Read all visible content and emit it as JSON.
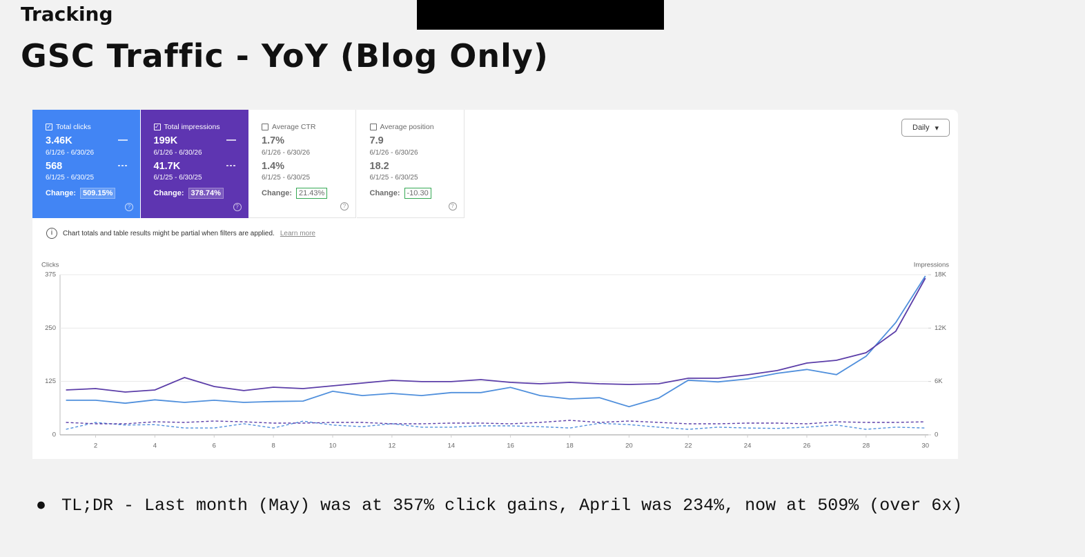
{
  "header": {
    "label": "Tracking",
    "title": "GSC Traffic - YoY (Blog Only)"
  },
  "metrics": [
    {
      "name": "Total clicks",
      "checked": true,
      "color": "#4285f4",
      "current": "3.46K",
      "current_range": "6/1/26 - 6/30/26",
      "previous": "568",
      "previous_range": "6/1/25 - 6/30/25",
      "change_label": "Change:",
      "change": "509.15%"
    },
    {
      "name": "Total impressions",
      "checked": true,
      "color": "#5e35b1",
      "current": "199K",
      "current_range": "6/1/26 - 6/30/26",
      "previous": "41.7K",
      "previous_range": "6/1/25 - 6/30/25",
      "change_label": "Change:",
      "change": "378.74%"
    },
    {
      "name": "Average CTR",
      "checked": false,
      "color": "#ffffff",
      "current": "1.7%",
      "current_range": "6/1/26 - 6/30/26",
      "previous": "1.4%",
      "previous_range": "6/1/25 - 6/30/25",
      "change_label": "Change:",
      "change": "21.43%"
    },
    {
      "name": "Average position",
      "checked": false,
      "color": "#ffffff",
      "current": "7.9",
      "current_range": "6/1/26 - 6/30/26",
      "previous": "18.2",
      "previous_range": "6/1/25 - 6/30/25",
      "change_label": "Change:",
      "change": "-10.30"
    }
  ],
  "notice": {
    "text": "Chart totals and table results might be partial when filters are applied.",
    "link": "Learn more"
  },
  "filter": "Daily",
  "chart_data": {
    "type": "line",
    "y_label": "Clicks",
    "y2_label": "Impressions",
    "x": [
      1,
      2,
      3,
      4,
      5,
      6,
      7,
      8,
      9,
      10,
      11,
      12,
      13,
      14,
      15,
      16,
      17,
      18,
      19,
      20,
      21,
      22,
      23,
      24,
      25,
      26,
      27,
      28,
      29,
      30
    ],
    "xlim": [
      0.8,
      30.1
    ],
    "xticks": [
      2,
      4,
      6,
      8,
      10,
      12,
      14,
      16,
      18,
      20,
      22,
      24,
      26,
      28,
      30
    ],
    "ylim": [
      0,
      375
    ],
    "yticks": [
      0,
      125,
      250,
      375
    ],
    "y2lim": [
      0,
      18000
    ],
    "y2ticks": [
      0,
      {
        "value": 6000,
        "label": "6K"
      },
      {
        "value": 12000,
        "label": "12K"
      },
      {
        "value": 18000,
        "label": "18K"
      }
    ],
    "grid": true,
    "series": [
      {
        "color": "#4f8fdc",
        "dashed": false,
        "axis": "y",
        "values": [
          81,
          81,
          74,
          82,
          76,
          81,
          76,
          78,
          79,
          102,
          92,
          97,
          92,
          99,
          99,
          111,
          92,
          84,
          87,
          66,
          86,
          128,
          124,
          131,
          144,
          153,
          141,
          184,
          263,
          372
        ]
      },
      {
        "color": "#4f8fdc",
        "dashed": true,
        "axis": "y",
        "values": [
          13,
          29,
          23,
          24,
          16,
          16,
          26,
          16,
          32,
          23,
          19,
          26,
          18,
          18,
          21,
          21,
          19,
          16,
          27,
          24,
          18,
          13,
          18,
          16,
          15,
          18,
          23,
          13,
          18,
          16
        ]
      },
      {
        "color": "#5b3da8",
        "dashed": false,
        "axis": "y2",
        "values": [
          5040,
          5200,
          4810,
          5040,
          6440,
          5430,
          4970,
          5350,
          5200,
          5510,
          5820,
          6130,
          5980,
          5980,
          6210,
          5900,
          5740,
          5900,
          5740,
          5660,
          5740,
          6360,
          6360,
          6750,
          7220,
          8070,
          8380,
          9230,
          11640,
          17610
        ]
      },
      {
        "color": "#5b3da8",
        "dashed": true,
        "axis": "y2",
        "values": [
          1400,
          1240,
          1240,
          1470,
          1400,
          1550,
          1470,
          1320,
          1320,
          1400,
          1400,
          1240,
          1240,
          1320,
          1320,
          1240,
          1400,
          1630,
          1400,
          1550,
          1400,
          1240,
          1240,
          1320,
          1320,
          1240,
          1470,
          1400,
          1400,
          1470
        ]
      }
    ]
  },
  "bullet": "TL;DR - Last month (May) was at 357% click gains, April was 234%, now at 509% (over 6x)"
}
